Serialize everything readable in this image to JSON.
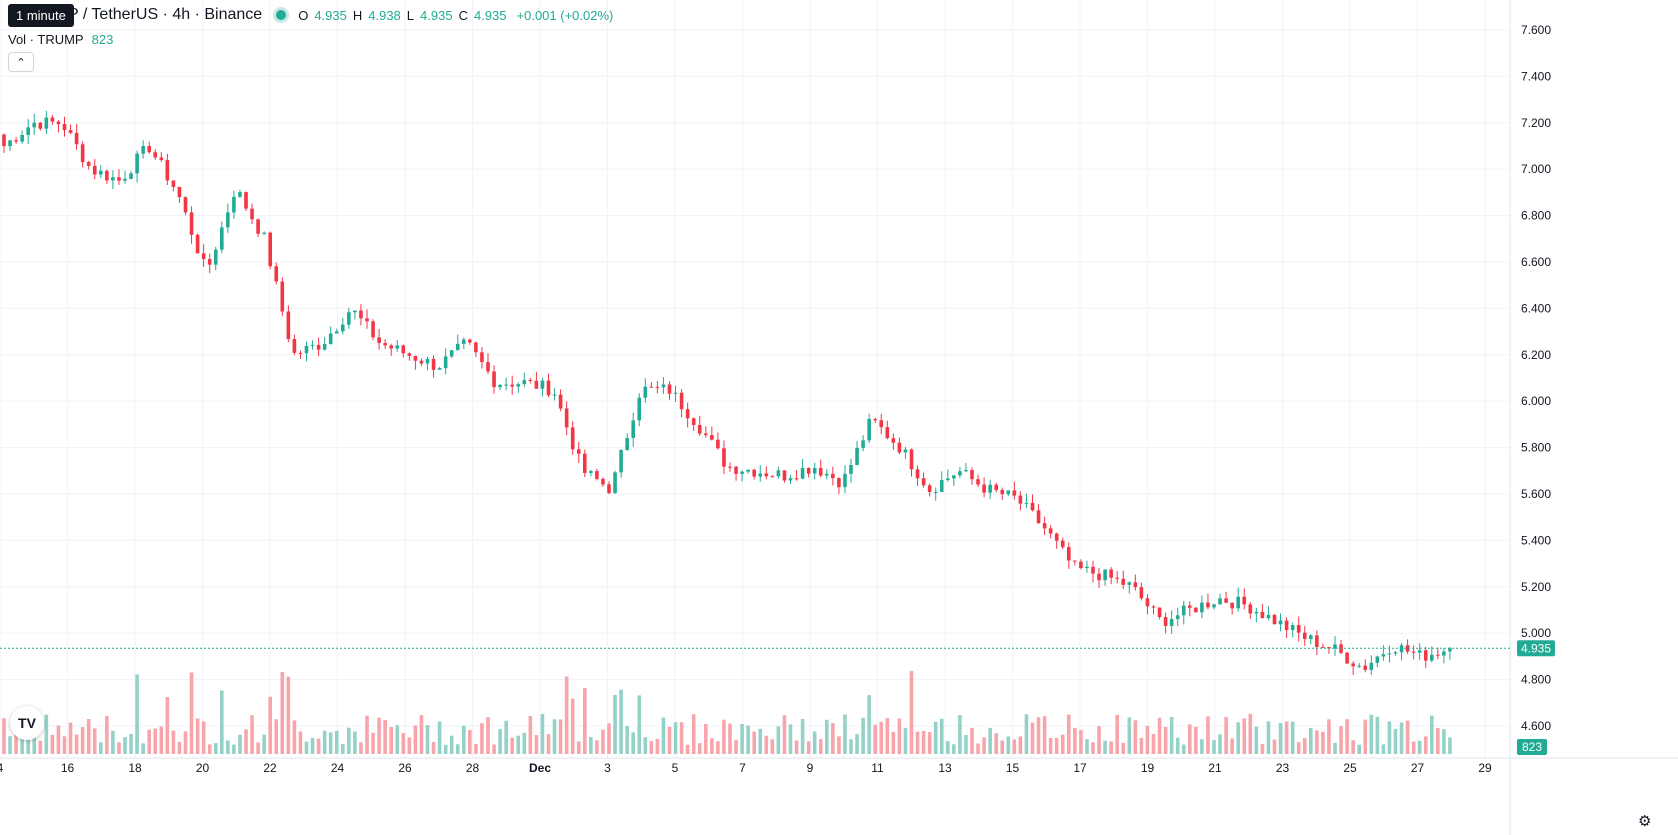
{
  "legend": {
    "tooltip": "1 minute",
    "symbol": "P / TetherUS · 4h · Binance",
    "open_label": "O",
    "open": "4.935",
    "high_label": "H",
    "high": "4.938",
    "low_label": "L",
    "low": "4.935",
    "close_label": "C",
    "close": "4.935",
    "change": "+0.001 (+0.02%)"
  },
  "volume_legend": {
    "label": "Vol · TRUMP",
    "value": "823"
  },
  "last_price_label": "4.935",
  "last_volume_label": "823",
  "colors": {
    "up": "#22ab94",
    "down": "#f23645",
    "up_vol": "#94d2c8",
    "down_vol": "#f7a5ab",
    "grid": "#f0f3fa",
    "text": "#131722"
  },
  "icons": {
    "collapse": "chevron-up-icon",
    "logo": "tradingview-logo-icon",
    "settings": "gear-icon"
  },
  "chart_data": {
    "type": "candlestick",
    "interval": "4h",
    "y_ticks": [
      "7.600",
      "7.400",
      "7.200",
      "7.000",
      "6.800",
      "6.600",
      "6.400",
      "6.200",
      "6.000",
      "5.800",
      "5.600",
      "5.400",
      "5.200",
      "5.000",
      "4.800",
      "4.600"
    ],
    "ylim": [
      4.52,
      7.66
    ],
    "x_ticks": [
      "4",
      "16",
      "18",
      "20",
      "22",
      "24",
      "26",
      "28",
      "Dec",
      "3",
      "5",
      "7",
      "9",
      "11",
      "13",
      "15",
      "17",
      "19",
      "21",
      "23",
      "25",
      "27",
      "29"
    ],
    "last_price": 4.935,
    "grid": true,
    "anchors": [
      [
        7.25,
        7.1,
        7.35
      ],
      [
        7.3,
        7.2,
        7.35
      ],
      [
        7.22,
        7.2,
        7.25
      ],
      [
        7.05,
        7.0,
        7.1
      ],
      [
        6.9,
        6.95,
        7.1
      ],
      [
        7.05,
        7.1,
        7.2
      ],
      [
        7.0,
        6.9,
        7.1
      ],
      [
        6.65,
        6.55,
        6.8
      ],
      [
        6.88,
        6.92,
        6.95
      ],
      [
        6.7,
        6.7,
        6.72
      ],
      [
        6.2,
        6.2,
        6.4
      ],
      [
        6.3,
        6.25,
        6.35
      ],
      [
        6.38,
        6.4,
        6.42
      ],
      [
        6.25,
        6.25,
        6.38
      ],
      [
        6.3,
        6.2,
        6.38
      ],
      [
        6.15,
        6.15,
        6.28
      ],
      [
        6.2,
        6.25,
        6.3
      ],
      [
        6.08,
        6.08,
        6.15
      ],
      [
        6.05,
        6.08,
        6.1
      ],
      [
        6.05,
        6.05,
        6.12
      ],
      [
        5.78,
        5.7,
        5.9
      ],
      [
        5.7,
        5.62,
        5.75
      ],
      [
        6.0,
        6.05,
        6.08
      ],
      [
        6.08,
        6.05,
        6.1
      ],
      [
        5.9,
        5.9,
        6.02
      ],
      [
        5.72,
        5.72,
        5.8
      ],
      [
        5.68,
        5.7,
        5.72
      ],
      [
        5.68,
        5.68,
        5.7
      ],
      [
        5.7,
        5.72,
        5.7
      ],
      [
        5.65,
        5.65,
        5.68
      ],
      [
        5.9,
        5.92,
        5.98
      ],
      [
        5.75,
        5.8,
        5.85
      ],
      [
        5.62,
        5.62,
        5.68
      ],
      [
        5.68,
        5.7,
        5.7
      ],
      [
        5.62,
        5.62,
        5.62
      ],
      [
        5.58,
        5.58,
        5.6
      ],
      [
        5.45,
        5.45,
        5.55
      ],
      [
        5.28,
        5.28,
        5.4
      ],
      [
        5.28,
        5.25,
        5.3
      ],
      [
        5.25,
        5.2,
        5.28
      ],
      [
        5.05,
        5.05,
        5.15
      ],
      [
        5.15,
        5.1,
        5.18
      ],
      [
        5.18,
        5.15,
        5.18
      ],
      [
        5.12,
        5.12,
        5.15
      ],
      [
        5.1,
        5.05,
        5.15
      ],
      [
        5.0,
        4.98,
        5.05
      ],
      [
        4.95,
        4.93,
        4.97
      ],
      [
        4.9,
        4.85,
        4.95
      ],
      [
        4.95,
        4.95,
        4.97
      ],
      [
        4.92,
        4.9,
        4.95
      ],
      [
        4.935,
        4.935,
        4.94
      ]
    ],
    "volume_range": [
      0,
      800
    ]
  }
}
